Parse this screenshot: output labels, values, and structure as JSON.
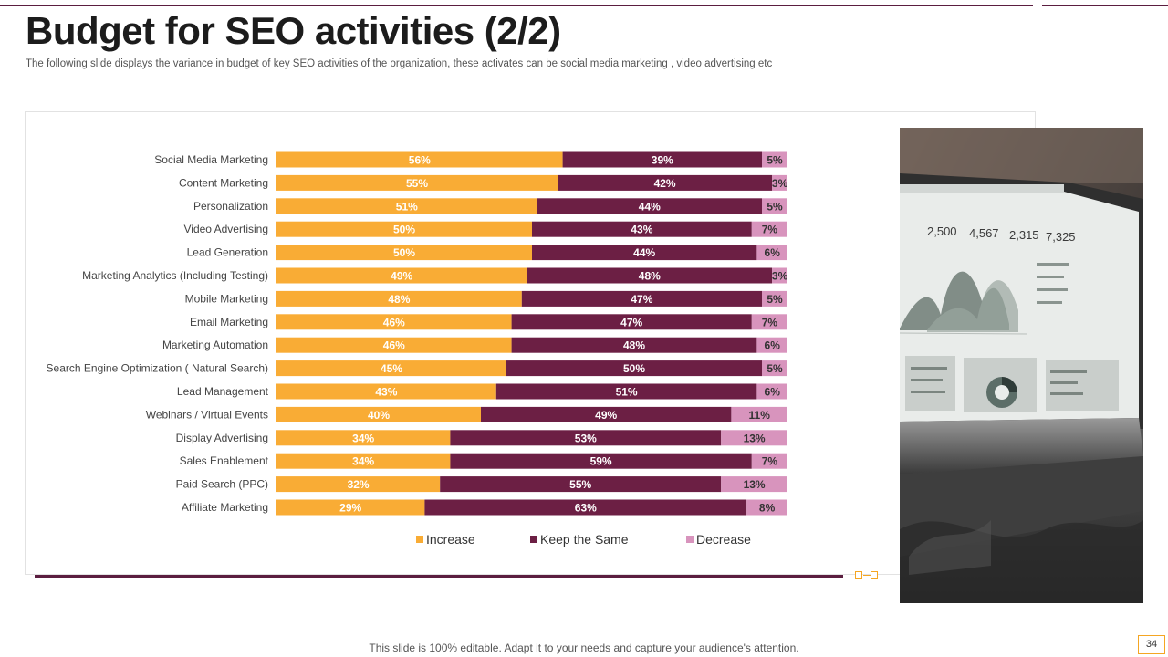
{
  "slide": {
    "title": "Budget for SEO activities (2/2)",
    "subtitle": "The following slide displays the variance in budget of key SEO  activities of the organization, these activates can be social media marketing , video advertising etc",
    "footer": "This slide is 100% editable. Adapt it to your needs and capture your audience's attention.",
    "page_number": "34"
  },
  "image": {
    "description_icon": "laptop-analytics-photo",
    "laptop_stats": [
      "2,500",
      "4,567",
      "2,315",
      "7,325"
    ]
  },
  "colors": {
    "increase": "#f9ac35",
    "keep": "#6c1f44",
    "decrease": "#d894bd",
    "accent": "#5b1e40",
    "gold": "#f5a623"
  },
  "chart_data": {
    "type": "bar",
    "orientation": "horizontal",
    "stacked": true,
    "stack_100_percent": true,
    "categories": [
      "Social  Media Marketing",
      "Content Marketing",
      "Personalization",
      "Video Advertising",
      "Lead Generation",
      "Marketing Analytics (Including Testing)",
      "Mobile Marketing",
      "Email Marketing",
      "Marketing Automation",
      "Search Engine Optimization ( Natural Search)",
      "Lead Management",
      "Webinars / Virtual Events",
      "Display Advertising",
      "Sales Enablement",
      "Paid Search (PPC)",
      "Affiliate Marketing"
    ],
    "series": [
      {
        "name": "Increase",
        "values": [
          56,
          55,
          51,
          50,
          50,
          49,
          48,
          46,
          46,
          45,
          43,
          40,
          34,
          34,
          32,
          29
        ]
      },
      {
        "name": "Keep the Same",
        "values": [
          39,
          42,
          44,
          43,
          44,
          48,
          47,
          47,
          48,
          50,
          51,
          49,
          53,
          59,
          55,
          63
        ]
      },
      {
        "name": "Decrease",
        "values": [
          5,
          3,
          5,
          7,
          6,
          3,
          5,
          7,
          6,
          5,
          6,
          11,
          13,
          7,
          13,
          8
        ]
      }
    ],
    "value_suffix": "%",
    "xlim": [
      0,
      100
    ],
    "grid": false,
    "legend_position": "bottom",
    "title": "",
    "xlabel": "",
    "ylabel": ""
  }
}
